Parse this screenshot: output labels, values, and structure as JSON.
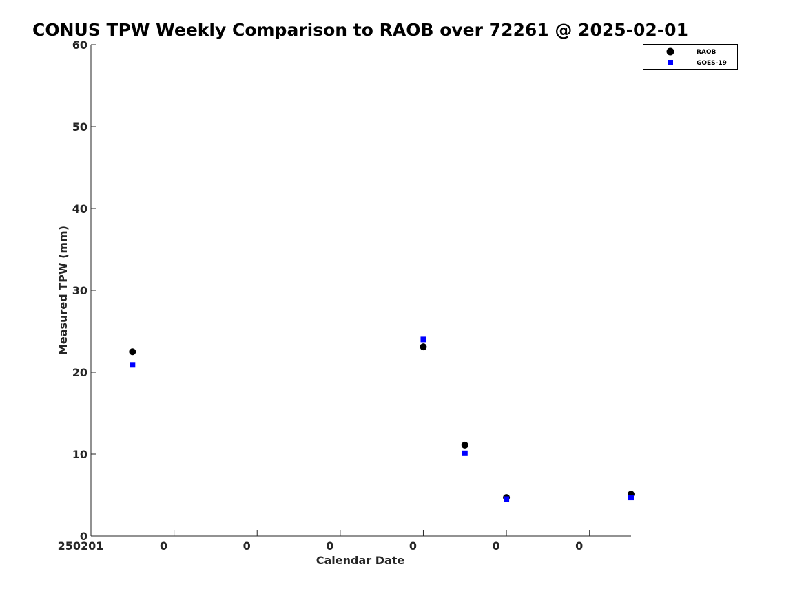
{
  "chart_data": {
    "type": "scatter",
    "title": "CONUS TPW Weekly Comparison to RAOB over 72261 @ 2025-02-01",
    "xlabel": "Calendar Date",
    "ylabel": "Measured TPW (mm)",
    "ylim": [
      0,
      60
    ],
    "xlim": [
      0,
      6.5
    ],
    "yticks": [
      0,
      10,
      20,
      30,
      40,
      50,
      60
    ],
    "xticks": [
      {
        "value": 0,
        "label": "250201"
      },
      {
        "value": 1,
        "label": "0"
      },
      {
        "value": 2,
        "label": "0"
      },
      {
        "value": 3,
        "label": "0"
      },
      {
        "value": 4,
        "label": "0"
      },
      {
        "value": 5,
        "label": "0"
      },
      {
        "value": 6,
        "label": "0"
      }
    ],
    "legend_position": "top-right",
    "series": [
      {
        "name": "RAOB",
        "marker": "circle",
        "color": "#000000",
        "points": [
          {
            "x": 0.5,
            "y": 22.5
          },
          {
            "x": 4.0,
            "y": 23.1
          },
          {
            "x": 4.5,
            "y": 11.1
          },
          {
            "x": 5.0,
            "y": 4.7
          },
          {
            "x": 6.5,
            "y": 5.1
          }
        ]
      },
      {
        "name": "GOES-19",
        "marker": "square",
        "color": "#0000ff",
        "points": [
          {
            "x": 0.5,
            "y": 20.9
          },
          {
            "x": 4.0,
            "y": 24.0
          },
          {
            "x": 4.5,
            "y": 10.1
          },
          {
            "x": 5.0,
            "y": 4.5
          },
          {
            "x": 6.5,
            "y": 4.7
          }
        ]
      }
    ]
  }
}
